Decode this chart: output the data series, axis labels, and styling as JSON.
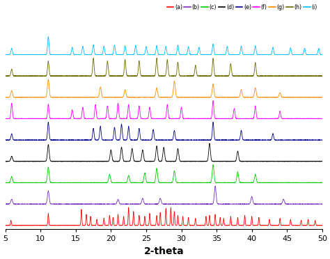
{
  "series_labels": [
    "(a)",
    "(b)",
    "(c)",
    "(d)",
    "(e)",
    "(f)",
    "(g)",
    "(h)",
    "(i)"
  ],
  "series_colors": [
    "#ff0000",
    "#7b2fbe",
    "#00cc00",
    "#000000",
    "#00008b",
    "#ff00ff",
    "#ff8c00",
    "#6b6b00",
    "#00bfff"
  ],
  "x_min": 5,
  "x_max": 50,
  "xlabel": "2-theta",
  "xlabel_fontsize": 10,
  "tick_fontsize": 8,
  "figsize": [
    4.74,
    3.72
  ],
  "dpi": 100,
  "background_color": "#ffffff"
}
